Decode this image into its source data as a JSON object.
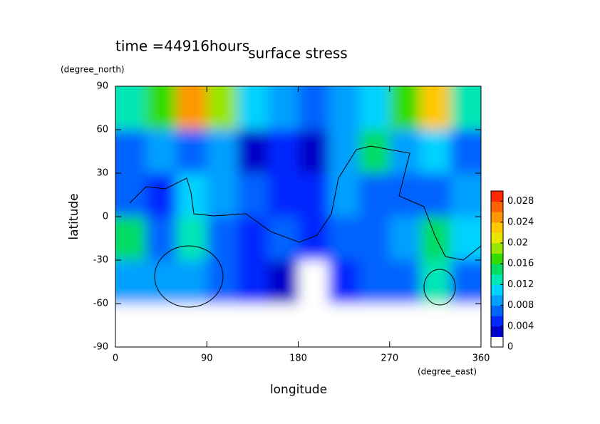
{
  "chart_data": {
    "type": "contour",
    "title": "surface stress",
    "subtitle": "time =44916hours",
    "y_unit": "(degree_north)",
    "x_unit": "(degree_east)",
    "ylabel": "latitude",
    "xlabel": "longitude",
    "xlim": [
      0,
      360
    ],
    "ylim": [
      -90,
      90
    ],
    "xticks": [
      0,
      90,
      180,
      270,
      360
    ],
    "yticks": [
      90,
      60,
      30,
      0,
      -30,
      -60,
      -90
    ],
    "x": [
      15,
      45,
      75,
      105,
      135,
      165,
      195,
      225,
      255,
      285,
      315,
      345
    ],
    "y": [
      75,
      45,
      15,
      -15,
      -45,
      -75
    ],
    "values": [
      [
        0.012,
        0.016,
        0.024,
        0.018,
        0.01,
        0.008,
        0.006,
        0.008,
        0.01,
        0.016,
        0.022,
        0.012
      ],
      [
        0.006,
        0.008,
        0.006,
        0.008,
        0.002,
        0.004,
        0.002,
        0.008,
        0.014,
        0.008,
        0.01,
        0.006
      ],
      [
        0.006,
        0.004,
        0.01,
        0.008,
        0.006,
        0.004,
        0.004,
        0.008,
        0.006,
        0.006,
        0.006,
        0.008
      ],
      [
        0.014,
        0.006,
        0.012,
        0.006,
        0.004,
        0.006,
        0.004,
        0.006,
        0.006,
        0.008,
        0.014,
        0.01
      ],
      [
        0.008,
        0.008,
        0.008,
        0.006,
        0.004,
        0.002,
        0.0,
        0.004,
        0.006,
        0.006,
        0.012,
        0.006
      ],
      [
        0.0,
        0.0,
        0.0,
        0.0,
        0.0,
        0.0,
        0.0,
        0.0,
        0.0,
        0.0,
        0.0,
        0.0
      ]
    ],
    "clim": [
      0,
      0.03
    ],
    "colors": [
      "#ffffff",
      "#0000c8",
      "#0028ff",
      "#0064ff",
      "#00a0ff",
      "#00d2ff",
      "#00e6b4",
      "#00dc64",
      "#32dc00",
      "#96e600",
      "#e6e600",
      "#ffc800",
      "#ff9600",
      "#ff6400",
      "#ff2800"
    ],
    "colorbar_ticks": [
      0,
      0.004,
      0.008,
      0.012,
      0.016,
      0.02,
      0.024,
      0.028
    ]
  }
}
